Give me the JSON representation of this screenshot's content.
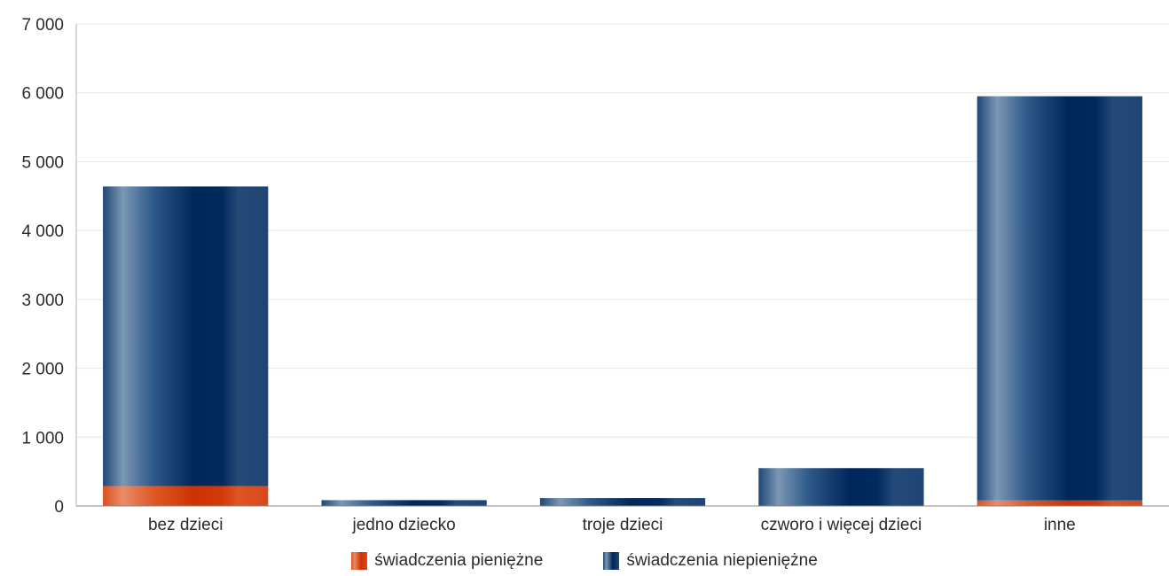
{
  "chart_data": {
    "type": "bar",
    "stacked": true,
    "categories": [
      "bez dzieci",
      "jedno dziecko",
      "troje dzieci",
      "czworo i więcej dzieci",
      "inne"
    ],
    "series": [
      {
        "name": "świadczenia pieniężne",
        "values": [
          290,
          0,
          0,
          0,
          80
        ],
        "color": "#d9400f"
      },
      {
        "name": "świadczenia niepieniężne",
        "values": [
          4350,
          85,
          115,
          550,
          5870
        ],
        "color": "#1a3d6b"
      }
    ],
    "yticks": [
      "0",
      "1 000",
      "2 000",
      "3 000",
      "4 000",
      "5 000",
      "6 000",
      "7 000"
    ],
    "ylim": [
      0,
      7000
    ],
    "grid": true,
    "legend_position": "bottom"
  }
}
